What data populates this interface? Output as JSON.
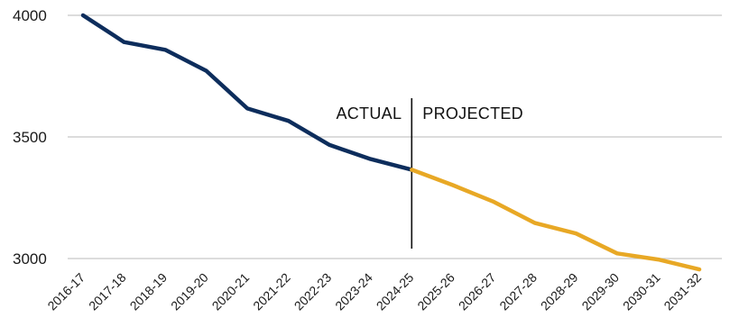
{
  "chart_data": {
    "type": "line",
    "categories": [
      "2016-17",
      "2017-18",
      "2018-19",
      "2019-20",
      "2020-21",
      "2021-22",
      "2022-23",
      "2023-24",
      "2024-25",
      "2025-26",
      "2026-27",
      "2027-28",
      "2028-29",
      "2029-30",
      "2030-31",
      "2031-32"
    ],
    "yticks": [
      "3000",
      "3500",
      "4000"
    ],
    "ylim": [
      3000,
      4000
    ],
    "grid": true,
    "series": [
      {
        "role": "actual",
        "color": "#0d2d5c",
        "values": [
          4000,
          3890,
          3858,
          3772,
          3617,
          3566,
          3467,
          3409,
          3365,
          null,
          null,
          null,
          null,
          null,
          null,
          null
        ]
      },
      {
        "role": "projected",
        "color": "#e8a825",
        "values": [
          null,
          null,
          null,
          null,
          null,
          null,
          null,
          null,
          3365,
          3302,
          3233,
          3146,
          3103,
          3021,
          2996,
          2955
        ]
      }
    ],
    "annotations": {
      "actual_label": "ACTUAL",
      "projected_label": "PROJECTED"
    },
    "divider_category": "2024-25"
  }
}
